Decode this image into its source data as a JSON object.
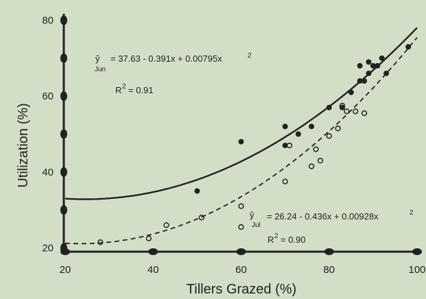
{
  "chart_data": {
    "type": "scatter",
    "xlabel": "Tillers Grazed (%)",
    "ylabel": "Utilization (%)",
    "xlim": [
      20,
      100
    ],
    "ylim": [
      19,
      81
    ],
    "xticks": [
      20,
      40,
      60,
      80,
      100
    ],
    "yticks": [
      20,
      40,
      60,
      80
    ],
    "xtick_labels": [
      "20",
      "40",
      "60",
      "80",
      "100"
    ],
    "ytick_labels": [
      "20",
      "40",
      "60",
      "80"
    ],
    "grid": false,
    "series": [
      {
        "name": "Jun",
        "marker": "filled-circle",
        "line": "solid",
        "points": [
          [
            50,
            35
          ],
          [
            60,
            48
          ],
          [
            70,
            47
          ],
          [
            70,
            52
          ],
          [
            73,
            50
          ],
          [
            76,
            52
          ],
          [
            80,
            57
          ],
          [
            83,
            57
          ],
          [
            85,
            61
          ],
          [
            87,
            64
          ],
          [
            88,
            64
          ],
          [
            87,
            68
          ],
          [
            89,
            66
          ],
          [
            90,
            68
          ],
          [
            89,
            69
          ],
          [
            91,
            68
          ],
          [
            92,
            70
          ],
          [
            93,
            66
          ],
          [
            98,
            73
          ]
        ],
        "fit": {
          "a": 37.63,
          "b": -0.391,
          "c": 0.00795
        },
        "equation": {
          "lhs": "ŷ",
          "sub": "Jun",
          "rhs": "= 37.63 - 0.391x + 0.00795x",
          "sup": "2",
          "r2_prefix": "R",
          "r2_sup": "2",
          "r2_value": "= 0.91"
        }
      },
      {
        "name": "Jul",
        "marker": "open-circle",
        "line": "dashed",
        "points": [
          [
            28,
            21.5
          ],
          [
            39,
            22.5
          ],
          [
            43,
            26
          ],
          [
            51,
            28
          ],
          [
            60,
            25.5
          ],
          [
            60,
            31
          ],
          [
            70,
            37.5
          ],
          [
            71,
            47
          ],
          [
            76,
            41.5
          ],
          [
            77,
            46
          ],
          [
            78,
            43
          ],
          [
            80,
            49.5
          ],
          [
            82,
            51.5
          ],
          [
            83,
            57.5
          ],
          [
            84,
            56
          ],
          [
            86,
            56
          ],
          [
            88,
            55.5
          ]
        ],
        "fit": {
          "a": 26.24,
          "b": -0.436,
          "c": 0.00928
        },
        "equation": {
          "lhs": "ŷ",
          "sub": "Jul",
          "rhs": "= 26.24 - 0.436x + 0.00928x",
          "sup": "2",
          "r2_prefix": "R",
          "r2_sup": "2",
          "r2_value": "= 0.90"
        }
      }
    ]
  },
  "colors": {
    "background": "#d2dfc6",
    "ink": "#222222"
  }
}
